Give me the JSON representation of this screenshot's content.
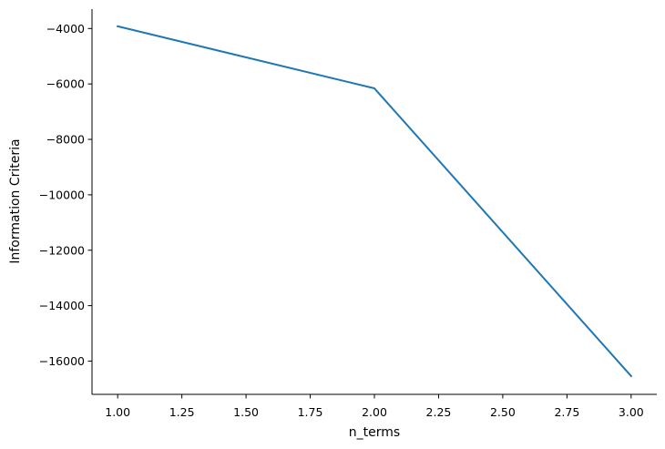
{
  "chart_data": {
    "type": "line",
    "title": "",
    "xlabel": "n_terms",
    "ylabel": "Information Criteria",
    "xlim": [
      0.9,
      3.1
    ],
    "ylim": [
      -17200,
      -3300
    ],
    "x_ticks": [
      1.0,
      1.25,
      1.5,
      1.75,
      2.0,
      2.25,
      2.5,
      2.75,
      3.0
    ],
    "x_tick_labels": [
      "1.00",
      "1.25",
      "1.50",
      "1.75",
      "2.00",
      "2.25",
      "2.50",
      "2.75",
      "3.00"
    ],
    "y_ticks": [
      -4000,
      -6000,
      -8000,
      -10000,
      -12000,
      -14000,
      -16000
    ],
    "y_tick_labels": [
      "−4000",
      "−6000",
      "−8000",
      "−10000",
      "−12000",
      "−14000",
      "−16000"
    ],
    "grid": false,
    "legend": "none",
    "color": "#1f77b4",
    "series": [
      {
        "x": [
          1.0,
          2.0,
          3.0
        ],
        "values": [
          -3920,
          -6160,
          -16540
        ]
      }
    ]
  }
}
